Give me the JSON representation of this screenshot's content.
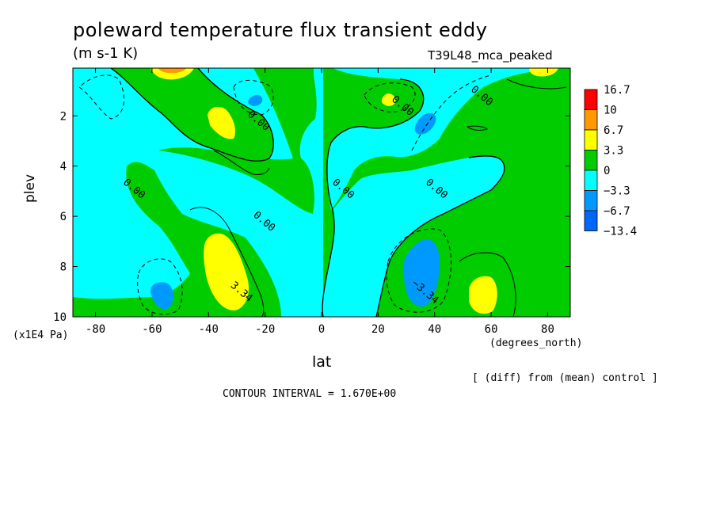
{
  "chart_data": {
    "type": "contour",
    "title": "poleward temperature flux transient eddy",
    "units": "(m s-1 K)",
    "experiment": "T39L48_mca_peaked",
    "xlabel": "lat",
    "xunit": "(degrees_north)",
    "ylabel": "plev",
    "yunit": "(x1E4 Pa)",
    "xlim": [
      -88,
      88
    ],
    "ylim": [
      10,
      0.1
    ],
    "xticks": [
      -80,
      -60,
      -40,
      -20,
      0,
      20,
      40,
      60,
      80
    ],
    "yticks": [
      2,
      4,
      6,
      8,
      10
    ],
    "legend": {
      "placement": "right",
      "labels": [
        "16.7",
        "10",
        "6.7",
        "3.3",
        "0",
        "−3.3",
        "−6.7",
        "−13.4"
      ],
      "colors": [
        "#ff0000",
        "#ff9900",
        "#ffff00",
        "#00cc00",
        "#00ffff",
        "#0099ff",
        "#0066ff"
      ]
    },
    "contour_labels": [
      {
        "text": "0.00",
        "x": -67,
        "y": 5.0
      },
      {
        "text": "0.00",
        "x": -23,
        "y": 2.3
      },
      {
        "text": "0.00",
        "x": -21,
        "y": 6.3
      },
      {
        "text": "0.00",
        "x": 7,
        "y": 5.0
      },
      {
        "text": "0.00",
        "x": 28,
        "y": 1.7
      },
      {
        "text": "0.00",
        "x": 40,
        "y": 5.0
      },
      {
        "text": "0.00",
        "x": 56,
        "y": 1.3
      },
      {
        "text": "3.34",
        "x": -29,
        "y": 9.1
      },
      {
        "text": "−3.34",
        "x": 36,
        "y": 9.1
      }
    ],
    "footer_left": "CONTOUR INTERVAL = 1.670E+00",
    "footer_right": "[ (diff) from (mean) control ]"
  }
}
